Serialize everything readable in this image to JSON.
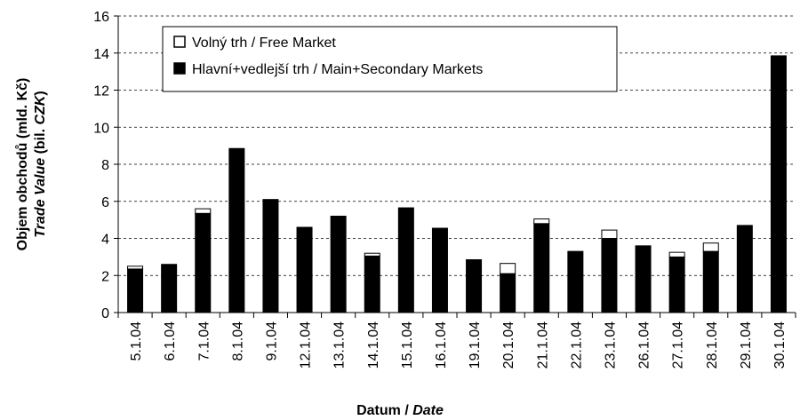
{
  "chart_data": {
    "type": "stacked_bar",
    "categories": [
      "5.1.04",
      "6.1.04",
      "7.1.04",
      "8.1.04",
      "9.1.04",
      "12.1.04",
      "13.1.04",
      "14.1.04",
      "15.1.04",
      "16.1.04",
      "19.1.04",
      "20.1.04",
      "21.1.04",
      "22.1.04",
      "23.1.04",
      "26.1.04",
      "27.1.04",
      "28.1.04",
      "29.1.04",
      "30.1.04"
    ],
    "series": [
      {
        "name": "Hlavní+vedlejší trh / Main+Secondary Markets",
        "color": "#000000",
        "values": [
          2.35,
          2.6,
          5.35,
          8.85,
          6.1,
          4.6,
          5.2,
          3.05,
          5.65,
          4.55,
          2.85,
          2.1,
          4.8,
          3.3,
          4.0,
          3.6,
          3.0,
          3.3,
          4.7,
          13.85
        ]
      },
      {
        "name": "Volný trh / Free Market",
        "color": "#ffffff",
        "values": [
          0.15,
          0,
          0.25,
          0,
          0,
          0,
          0,
          0.15,
          0,
          0,
          0,
          0.55,
          0.25,
          0,
          0.45,
          0,
          0.25,
          0.45,
          0,
          0
        ]
      }
    ],
    "ylim": [
      0,
      16
    ],
    "yticks": [
      0,
      2,
      4,
      6,
      8,
      10,
      12,
      14,
      16
    ],
    "grid": true,
    "y_label": [
      "Objem obchodů (mld. Kč)",
      [
        "Trade Value",
        " (bil. ",
        "CZK",
        ")"
      ]
    ],
    "x_label": [
      "Datum / ",
      "Date"
    ]
  }
}
